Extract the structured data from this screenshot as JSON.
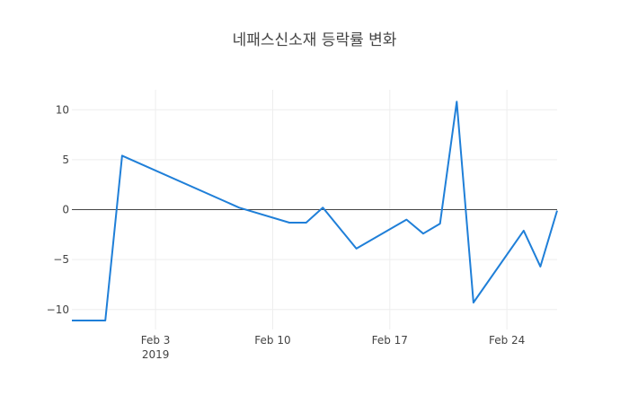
{
  "chart_data": {
    "type": "line",
    "title": "네패스신소재 등락률 변화",
    "xlabel": "",
    "ylabel": "",
    "x_range": [
      "2019-01-29",
      "2019-02-27"
    ],
    "y_range": [
      -12,
      12
    ],
    "grid": true,
    "zero_line": true,
    "line_color": "#1f7fd8",
    "x_ticks": [
      {
        "date": "2019-02-03",
        "label": "Feb 3",
        "sublabel": "2019"
      },
      {
        "date": "2019-02-10",
        "label": "Feb 10",
        "sublabel": ""
      },
      {
        "date": "2019-02-17",
        "label": "Feb 17",
        "sublabel": ""
      },
      {
        "date": "2019-02-24",
        "label": "Feb 24",
        "sublabel": ""
      }
    ],
    "y_ticks": [
      {
        "value": 10,
        "label": "10"
      },
      {
        "value": 5,
        "label": "5"
      },
      {
        "value": 0,
        "label": "0"
      },
      {
        "value": -5,
        "label": "−5"
      },
      {
        "value": -10,
        "label": "−10"
      }
    ],
    "series": [
      {
        "x": [
          "2019-01-29",
          "2019-01-30",
          "2019-01-31",
          "2019-02-01",
          "2019-02-08",
          "2019-02-11",
          "2019-02-12",
          "2019-02-13",
          "2019-02-15",
          "2019-02-18",
          "2019-02-19",
          "2019-02-20",
          "2019-02-21",
          "2019-02-22",
          "2019-02-25",
          "2019-02-26",
          "2019-02-27"
        ],
        "values": [
          -11.1,
          -11.1,
          -11.1,
          5.4,
          0.2,
          -1.3,
          -1.3,
          0.2,
          -3.9,
          -1.0,
          -2.4,
          -1.4,
          10.8,
          -9.3,
          -2.1,
          -5.7,
          -0.1
        ]
      }
    ]
  }
}
